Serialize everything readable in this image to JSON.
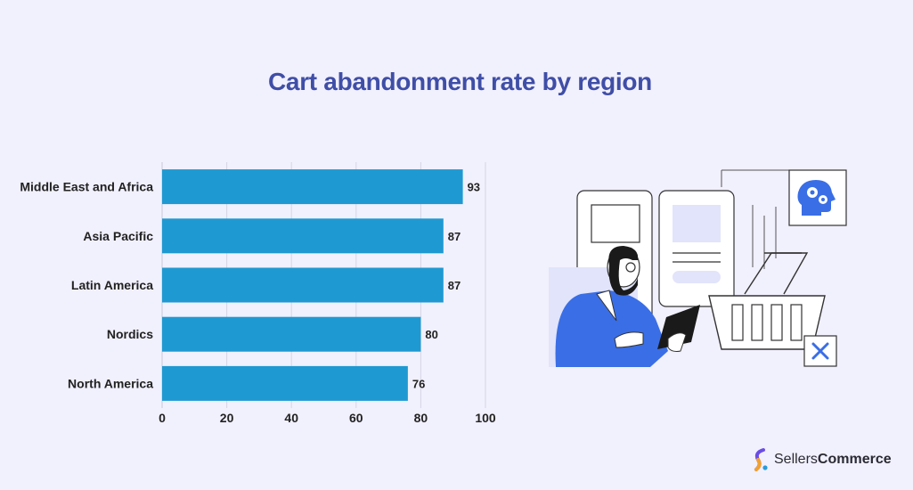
{
  "page": {
    "title": "Cart abandonment rate by region"
  },
  "chart_data": {
    "type": "bar",
    "orientation": "horizontal",
    "title": "Cart abandonment rate by region",
    "xlabel": "",
    "ylabel": "",
    "categories": [
      "Middle East and Africa",
      "Asia Pacific",
      "Latin America",
      "Nordics",
      "North America"
    ],
    "values": [
      93,
      87,
      87,
      80,
      76
    ],
    "xlim": [
      0,
      100
    ],
    "xticks": [
      0,
      20,
      40,
      60,
      80,
      100
    ],
    "grid": "vertical",
    "bar_color": "#1f99d1",
    "data_labels": true
  },
  "brand": {
    "name_part1": "Sellers",
    "name_part2": "Commerce"
  },
  "colors": {
    "background": "#f1f0fd",
    "title": "#3f4ea6",
    "bar": "#1f99d1",
    "accent_blue": "#3a6ee6"
  },
  "illustration": {
    "icons": [
      "ai-head-gear-icon",
      "shopping-basket-icon",
      "close-x-icon",
      "tablet-icon",
      "person-icon"
    ]
  }
}
